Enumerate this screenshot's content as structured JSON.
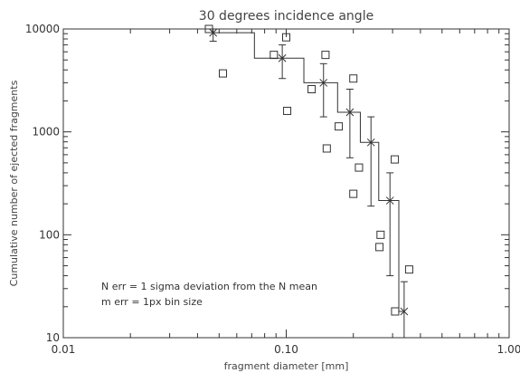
{
  "chart_data": {
    "type": "scatter",
    "title": "30 degrees incidence angle",
    "xlabel": "fragment diameter [mm]",
    "ylabel": "Cumulative number of ejected fragments",
    "xscale": "log",
    "yscale": "log",
    "xlim": [
      0.01,
      1.0
    ],
    "ylim": [
      10,
      10000
    ],
    "xticks": [
      0.01,
      0.1,
      1.0
    ],
    "xtick_labels": [
      "0.01",
      "0.10",
      "1.00"
    ],
    "yticks": [
      10,
      100,
      1000,
      10000
    ],
    "ytick_labels": [
      "10",
      "100",
      "1000",
      "10000"
    ],
    "grid": false,
    "annotations": [
      "N err = 1 sigma deviation from the N mean",
      "m err = 1px bin size"
    ],
    "series": [
      {
        "marker": "square",
        "points": [
          {
            "x": 0.045,
            "y": 10000
          },
          {
            "x": 0.052,
            "y": 3700
          },
          {
            "x": 0.088,
            "y": 5600
          },
          {
            "x": 0.1,
            "y": 8300
          },
          {
            "x": 0.101,
            "y": 1600
          },
          {
            "x": 0.13,
            "y": 2600
          },
          {
            "x": 0.15,
            "y": 5600
          },
          {
            "x": 0.152,
            "y": 690
          },
          {
            "x": 0.172,
            "y": 1130
          },
          {
            "x": 0.2,
            "y": 3300
          },
          {
            "x": 0.2,
            "y": 250
          },
          {
            "x": 0.212,
            "y": 450
          },
          {
            "x": 0.262,
            "y": 76
          },
          {
            "x": 0.265,
            "y": 100
          },
          {
            "x": 0.307,
            "y": 540
          },
          {
            "x": 0.308,
            "y": 18
          },
          {
            "x": 0.356,
            "y": 46
          }
        ]
      },
      {
        "marker": "x",
        "points": [
          {
            "x": 0.047,
            "y": 9200,
            "ylow": 7600,
            "yhigh": 10000
          },
          {
            "x": 0.096,
            "y": 5200,
            "ylow": 3300,
            "yhigh": 7000
          },
          {
            "x": 0.147,
            "y": 3000,
            "ylow": 1400,
            "yhigh": 4600
          },
          {
            "x": 0.193,
            "y": 1550,
            "ylow": 560,
            "yhigh": 2600
          },
          {
            "x": 0.24,
            "y": 790,
            "ylow": 190,
            "yhigh": 1400
          },
          {
            "x": 0.292,
            "y": 215,
            "ylow": 40,
            "yhigh": 400
          },
          {
            "x": 0.338,
            "y": 18,
            "ylow": 10,
            "yhigh": 35
          }
        ]
      },
      {
        "marker": "step",
        "points": [
          {
            "x": 0.047,
            "y": 9200
          },
          {
            "x": 0.072,
            "y": 5200
          },
          {
            "x": 0.12,
            "y": 3000
          },
          {
            "x": 0.17,
            "y": 1550
          },
          {
            "x": 0.215,
            "y": 790
          },
          {
            "x": 0.26,
            "y": 215
          },
          {
            "x": 0.32,
            "y": 18
          },
          {
            "x": 0.34,
            "y": 18
          }
        ]
      }
    ]
  }
}
